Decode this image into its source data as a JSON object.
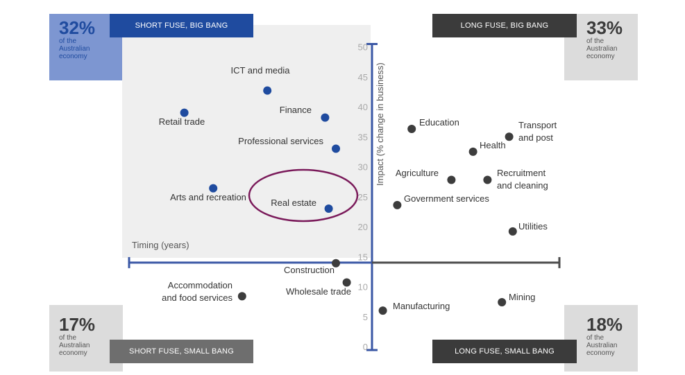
{
  "quadrants": {
    "top_left": {
      "banner": "SHORT FUSE, BIG BANG",
      "percent": "32%",
      "sub": [
        "of the",
        "Australian",
        "economy"
      ],
      "color": "#1f4b9f",
      "box_color": "#7d96d1"
    },
    "top_right": {
      "banner": "LONG FUSE, BIG BANG",
      "percent": "33%",
      "sub": [
        "of the",
        "Australian",
        "economy"
      ],
      "color": "#3b3b3b",
      "box_color": "#dcdcdc"
    },
    "bottom_left": {
      "banner": "SHORT FUSE, SMALL BANG",
      "percent": "17%",
      "sub": [
        "of the",
        "Australian",
        "economy"
      ],
      "color": "#6e6e6e",
      "box_color": "#dcdcdc"
    },
    "bottom_right": {
      "banner": "LONG FUSE, SMALL BANG",
      "percent": "18%",
      "sub": [
        "of the",
        "Australian",
        "economy"
      ],
      "color": "#3b3b3b",
      "box_color": "#dcdcdc"
    }
  },
  "colors": {
    "axis": "#3a57a5",
    "short_fuse_dot": "#1f4b9f",
    "long_fuse_dot": "#3d3d3d",
    "highlight_ellipse": "#7a1a5a",
    "shaded_quadrant": "#efefef"
  },
  "chart_data": {
    "type": "scatter",
    "xlabel": "Timing (years)",
    "ylabel": "Impact (% change in business)",
    "ylim": [
      0,
      50
    ],
    "y_ticks": [
      "0",
      "5",
      "10",
      "15",
      "20",
      "25",
      "30",
      "35",
      "40",
      "45",
      "50"
    ],
    "x_axis_crosses_y_at": 14,
    "highlighted": "Real estate",
    "points": [
      {
        "label": "ICT and media",
        "t": -2.9,
        "y": 42.7,
        "group": "short_fuse_big_bang"
      },
      {
        "label": "Retail trade",
        "t": -5.2,
        "y": 39.0,
        "group": "short_fuse_big_bang"
      },
      {
        "label": "Finance",
        "t": -1.3,
        "y": 38.2,
        "group": "short_fuse_big_bang"
      },
      {
        "label": "Professional services",
        "t": -1.0,
        "y": 33.0,
        "group": "short_fuse_big_bang"
      },
      {
        "label": "Arts and recreation",
        "t": -4.4,
        "y": 26.4,
        "group": "short_fuse_big_bang"
      },
      {
        "label": "Real estate",
        "t": -1.2,
        "y": 23.0,
        "group": "short_fuse_big_bang"
      },
      {
        "label": "Education",
        "t": 1.1,
        "y": 36.3,
        "group": "long_fuse_big_bang"
      },
      {
        "label": "Transport and post",
        "t": 3.8,
        "y": 35.0,
        "group": "long_fuse_big_bang"
      },
      {
        "label": "Health",
        "t": 2.8,
        "y": 32.5,
        "group": "long_fuse_big_bang"
      },
      {
        "label": "Agriculture",
        "t": 2.2,
        "y": 27.8,
        "group": "long_fuse_big_bang"
      },
      {
        "label": "Recruitment and cleaning",
        "t": 3.2,
        "y": 27.8,
        "group": "long_fuse_big_bang"
      },
      {
        "label": "Government services",
        "t": 0.7,
        "y": 23.6,
        "group": "long_fuse_big_bang"
      },
      {
        "label": "Utilities",
        "t": 3.9,
        "y": 19.2,
        "group": "long_fuse_big_bang"
      },
      {
        "label": "Construction",
        "t": -1.0,
        "y": 13.9,
        "group": "short_fuse_small_bang"
      },
      {
        "label": "Wholesale trade",
        "t": -0.7,
        "y": 10.7,
        "group": "short_fuse_small_bang"
      },
      {
        "label": "Accommodation and food services",
        "t": -3.6,
        "y": 8.4,
        "group": "short_fuse_small_bang"
      },
      {
        "label": "Manufacturing",
        "t": 0.3,
        "y": 6.0,
        "group": "long_fuse_small_bang"
      },
      {
        "label": "Mining",
        "t": 3.6,
        "y": 7.4,
        "group": "long_fuse_small_bang"
      }
    ]
  }
}
